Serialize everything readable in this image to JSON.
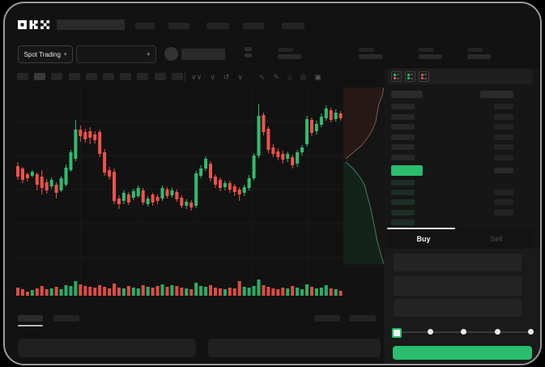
{
  "app": {
    "brand": "OKX"
  },
  "header": {
    "market_selector": "Spot Trading"
  },
  "toolbar": {
    "timeframe_slots": 10,
    "active_slot_index": 1,
    "icons": [
      {
        "name": "zigzag-tool-icon",
        "glyph": "∨∨"
      },
      {
        "name": "chevron-tool-icon",
        "glyph": "∨"
      },
      {
        "name": "undo-icon",
        "glyph": "↺"
      },
      {
        "name": "chevron-down-icon",
        "glyph": "∨"
      },
      {
        "name": "wave-tool-icon",
        "glyph": "∿"
      },
      {
        "name": "draw-tool-icon",
        "glyph": "✎"
      },
      {
        "name": "camera-icon",
        "glyph": "⌂"
      },
      {
        "name": "settings-icon",
        "glyph": "◎"
      },
      {
        "name": "fullscreen-icon",
        "glyph": "▣"
      }
    ]
  },
  "order_book": {
    "layout_icons": [
      {
        "name": "book-combined-icon",
        "top": "#2ebd70",
        "bottom": "#f0524a"
      },
      {
        "name": "book-bids-icon",
        "top": "#2ebd70",
        "bottom": "#2ebd70"
      },
      {
        "name": "book-asks-icon",
        "top": "#f0524a",
        "bottom": "#f0524a"
      }
    ],
    "ask_rows": 6,
    "bid_rows": 5,
    "bid_rows_with_amount": [
      1,
      2,
      3
    ],
    "price_highlight_color": "#2abd6e"
  },
  "trade_panel": {
    "buy_label": "Buy",
    "sell_label": "Sell",
    "active_tab": "Buy",
    "slider_stops": [
      0,
      25,
      50,
      75,
      100
    ],
    "selected_stop_index": 0
  },
  "colors": {
    "up": "#2ebd70",
    "down": "#f0524a",
    "accent": "#2abd6e",
    "depth_ask_fill": "#261817",
    "depth_ask_line": "#7c5a55",
    "depth_bid_fill": "#142319",
    "depth_bid_line": "#4a7a5e",
    "grid": "#1b1b1b"
  },
  "chart_data": {
    "type": "candlestick",
    "title": "",
    "xlabel": "",
    "ylabel": "",
    "units": "relative-price (no visible axis labels in screenshot)",
    "candles_ochl": [
      [
        127,
        114,
        132,
        110
      ],
      [
        124,
        110,
        126,
        106
      ],
      [
        117,
        112,
        119,
        108
      ],
      [
        115,
        120,
        122,
        113
      ],
      [
        117,
        104,
        119,
        97
      ],
      [
        114,
        100,
        122,
        92
      ],
      [
        107,
        97,
        111,
        93
      ],
      [
        102,
        110,
        113,
        99
      ],
      [
        104,
        94,
        107,
        87
      ],
      [
        97,
        112,
        115,
        95
      ],
      [
        104,
        125,
        129,
        102
      ],
      [
        122,
        144,
        147,
        120
      ],
      [
        136,
        172,
        184,
        133
      ],
      [
        172,
        164,
        177,
        157
      ],
      [
        169,
        160,
        173,
        156
      ],
      [
        170,
        162,
        175,
        154
      ],
      [
        166,
        159,
        170,
        155
      ],
      [
        169,
        142,
        172,
        138
      ],
      [
        144,
        119,
        148,
        115
      ],
      [
        122,
        114,
        126,
        110
      ],
      [
        120,
        84,
        124,
        80
      ],
      [
        87,
        80,
        91,
        74
      ],
      [
        84,
        94,
        97,
        80
      ],
      [
        92,
        82,
        95,
        79
      ],
      [
        88,
        96,
        99,
        85
      ],
      [
        90,
        100,
        103,
        88
      ],
      [
        97,
        82,
        100,
        79
      ],
      [
        80,
        87,
        90,
        77
      ],
      [
        92,
        82,
        94,
        78
      ],
      [
        89,
        84,
        92,
        80
      ],
      [
        87,
        100,
        103,
        84
      ],
      [
        98,
        90,
        101,
        87
      ],
      [
        91,
        97,
        100,
        88
      ],
      [
        95,
        86,
        98,
        83
      ],
      [
        88,
        78,
        91,
        75
      ],
      [
        78,
        83,
        86,
        74
      ],
      [
        82,
        76,
        85,
        72
      ],
      [
        78,
        118,
        121,
        75
      ],
      [
        115,
        124,
        128,
        112
      ],
      [
        124,
        136,
        139,
        121
      ],
      [
        130,
        112,
        133,
        108
      ],
      [
        114,
        104,
        117,
        100
      ],
      [
        110,
        100,
        113,
        96
      ],
      [
        101,
        106,
        109,
        97
      ],
      [
        106,
        98,
        109,
        94
      ],
      [
        102,
        95,
        105,
        90
      ],
      [
        98,
        92,
        101,
        84
      ],
      [
        94,
        101,
        104,
        90
      ],
      [
        100,
        112,
        116,
        97
      ],
      [
        112,
        140,
        143,
        109
      ],
      [
        140,
        189,
        204,
        137
      ],
      [
        190,
        169,
        193,
        165
      ],
      [
        173,
        147,
        176,
        143
      ],
      [
        150,
        142,
        154,
        138
      ],
      [
        145,
        138,
        149,
        134
      ],
      [
        142,
        135,
        146,
        130
      ],
      [
        136,
        142,
        145,
        132
      ],
      [
        138,
        128,
        141,
        124
      ],
      [
        130,
        144,
        147,
        126
      ],
      [
        144,
        150,
        153,
        140
      ],
      [
        154,
        185,
        189,
        151
      ],
      [
        184,
        168,
        187,
        164
      ],
      [
        170,
        179,
        183,
        166
      ],
      [
        178,
        188,
        192,
        175
      ],
      [
        186,
        198,
        202,
        183
      ],
      [
        196,
        184,
        199,
        181
      ],
      [
        185,
        193,
        197,
        182
      ],
      [
        192,
        186,
        195,
        183
      ]
    ],
    "volumes": [
      10,
      8,
      5,
      7,
      9,
      12,
      8,
      9,
      11,
      8,
      13,
      12,
      18,
      14,
      12,
      11,
      10,
      13,
      11,
      9,
      15,
      10,
      9,
      12,
      10,
      9,
      13,
      11,
      10,
      12,
      14,
      11,
      13,
      12,
      10,
      9,
      8,
      16,
      12,
      11,
      13,
      10,
      9,
      8,
      10,
      9,
      18,
      11,
      10,
      12,
      20,
      13,
      11,
      9,
      8,
      10,
      9,
      12,
      10,
      8,
      14,
      11,
      9,
      10,
      13,
      9,
      8,
      6
    ],
    "depth": {
      "asks_curve": [
        [
          50,
          0
        ],
        [
          48,
          10
        ],
        [
          44,
          20
        ],
        [
          42,
          30
        ],
        [
          40,
          42
        ],
        [
          36,
          52
        ],
        [
          30,
          62
        ],
        [
          22,
          72
        ],
        [
          10,
          82
        ],
        [
          3,
          88
        ]
      ],
      "bids_curve": [
        [
          3,
          92
        ],
        [
          12,
          100
        ],
        [
          20,
          110
        ],
        [
          26,
          120
        ],
        [
          30,
          135
        ],
        [
          34,
          150
        ],
        [
          38,
          170
        ],
        [
          42,
          190
        ],
        [
          46,
          205
        ],
        [
          50,
          218
        ]
      ]
    }
  }
}
